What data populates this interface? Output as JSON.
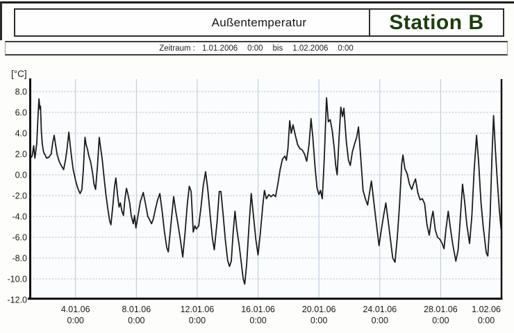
{
  "header": {
    "title": "Außentemperatur",
    "station": "Station B",
    "station_color": "#1e3c10"
  },
  "period": {
    "label": "Zeitraum :",
    "start_date": "1.01.2006",
    "start_time": "0:00",
    "connector": "bis",
    "end_date": "1.02.2006",
    "end_time": "0:00"
  },
  "chart_data": {
    "type": "line",
    "title": "Außentemperatur",
    "subtitle": "Station B",
    "unit_label": "[°C]",
    "xlabel": "",
    "ylabel": "[°C]",
    "ylim": [
      -12.0,
      8.0
    ],
    "grid": true,
    "legend_position": "none",
    "line_color": "#1b1b1b",
    "grid_color": "#b9c5d8",
    "axis_color": "#111111",
    "y_ticks": [
      8,
      6,
      4,
      2,
      0,
      -2,
      -4,
      -6,
      -8,
      -10,
      -12
    ],
    "y_tick_labels": [
      "8.0",
      "6.0",
      "4.0",
      "2.0",
      "0.0",
      "-2.0",
      "-4.0",
      "-6.0",
      "-8.0",
      "-10.0",
      "-12.0"
    ],
    "x_range_days": [
      1,
      32
    ],
    "x_ticks_days": [
      4,
      8,
      12,
      16,
      20,
      24,
      28,
      32
    ],
    "x_tick_labels": [
      {
        "date": "4.01.06",
        "time": "0:00"
      },
      {
        "date": "8.01.06",
        "time": "0:00"
      },
      {
        "date": "12.01.06",
        "time": "0:00"
      },
      {
        "date": "16.01.06",
        "time": "0:00"
      },
      {
        "date": "20.01.06",
        "time": "0:00"
      },
      {
        "date": "24.01.06",
        "time": "0:00"
      },
      {
        "date": "28.01.06",
        "time": "0:00"
      },
      {
        "date": "1.02.06",
        "time": "0:00"
      }
    ],
    "series": [
      {
        "name": "Außentemperatur [°C]",
        "x_unit": "day of period (1 = 1.01.2006 0:00)",
        "points": [
          [
            1.05,
            1.6
          ],
          [
            1.15,
            1.8
          ],
          [
            1.25,
            2.8
          ],
          [
            1.33,
            1.6
          ],
          [
            1.45,
            3.0
          ],
          [
            1.55,
            6.0
          ],
          [
            1.6,
            7.3
          ],
          [
            1.66,
            6.3
          ],
          [
            1.7,
            6.6
          ],
          [
            1.76,
            4.1
          ],
          [
            1.82,
            2.9
          ],
          [
            1.9,
            2.2
          ],
          [
            2.0,
            1.9
          ],
          [
            2.1,
            1.6
          ],
          [
            2.25,
            1.7
          ],
          [
            2.4,
            2.0
          ],
          [
            2.5,
            3.1
          ],
          [
            2.6,
            3.8
          ],
          [
            2.7,
            2.8
          ],
          [
            2.8,
            1.9
          ],
          [
            2.95,
            1.2
          ],
          [
            3.1,
            0.8
          ],
          [
            3.22,
            0.5
          ],
          [
            3.35,
            1.5
          ],
          [
            3.45,
            2.6
          ],
          [
            3.56,
            4.1
          ],
          [
            3.65,
            2.9
          ],
          [
            3.75,
            1.6
          ],
          [
            3.85,
            0.5
          ],
          [
            4.0,
            -0.5
          ],
          [
            4.15,
            -1.3
          ],
          [
            4.3,
            -1.8
          ],
          [
            4.42,
            -1.4
          ],
          [
            4.52,
            0.6
          ],
          [
            4.62,
            3.6
          ],
          [
            4.7,
            2.9
          ],
          [
            4.78,
            2.5
          ],
          [
            4.88,
            1.8
          ],
          [
            5.0,
            1.2
          ],
          [
            5.12,
            0.2
          ],
          [
            5.22,
            -0.9
          ],
          [
            5.32,
            -1.4
          ],
          [
            5.44,
            0.8
          ],
          [
            5.56,
            3.6
          ],
          [
            5.65,
            2.6
          ],
          [
            5.76,
            1.4
          ],
          [
            5.88,
            -0.3
          ],
          [
            6.0,
            -1.9
          ],
          [
            6.12,
            -3.2
          ],
          [
            6.24,
            -4.4
          ],
          [
            6.33,
            -4.8
          ],
          [
            6.45,
            -3.0
          ],
          [
            6.56,
            -1.2
          ],
          [
            6.65,
            -0.3
          ],
          [
            6.76,
            -1.9
          ],
          [
            6.86,
            -3.1
          ],
          [
            6.95,
            -2.7
          ],
          [
            7.05,
            -3.5
          ],
          [
            7.15,
            -3.9
          ],
          [
            7.25,
            -2.3
          ],
          [
            7.35,
            -1.3
          ],
          [
            7.45,
            -1.9
          ],
          [
            7.56,
            -2.7
          ],
          [
            7.66,
            -3.9
          ],
          [
            7.8,
            -4.7
          ],
          [
            7.88,
            -3.9
          ],
          [
            7.97,
            -5.1
          ],
          [
            8.1,
            -4.0
          ],
          [
            8.26,
            -2.6
          ],
          [
            8.45,
            -1.7
          ],
          [
            8.6,
            -2.8
          ],
          [
            8.75,
            -4.0
          ],
          [
            8.9,
            -4.4
          ],
          [
            9.0,
            -4.7
          ],
          [
            9.12,
            -4.2
          ],
          [
            9.25,
            -3.3
          ],
          [
            9.4,
            -2.4
          ],
          [
            9.54,
            -1.8
          ],
          [
            9.7,
            -3.6
          ],
          [
            9.85,
            -5.5
          ],
          [
            10.0,
            -7.0
          ],
          [
            10.1,
            -7.4
          ],
          [
            10.25,
            -5.1
          ],
          [
            10.45,
            -2.1
          ],
          [
            10.6,
            -3.6
          ],
          [
            10.75,
            -4.9
          ],
          [
            10.9,
            -6.3
          ],
          [
            11.05,
            -7.9
          ],
          [
            11.2,
            -5.6
          ],
          [
            11.35,
            -2.8
          ],
          [
            11.48,
            -1.1
          ],
          [
            11.6,
            -1.6
          ],
          [
            11.74,
            -5.5
          ],
          [
            11.85,
            -4.9
          ],
          [
            11.95,
            -5.2
          ],
          [
            12.1,
            -4.9
          ],
          [
            12.25,
            -3.1
          ],
          [
            12.4,
            -1.0
          ],
          [
            12.55,
            0.3
          ],
          [
            12.7,
            -1.5
          ],
          [
            12.85,
            -3.9
          ],
          [
            13.0,
            -6.1
          ],
          [
            13.12,
            -7.2
          ],
          [
            13.3,
            -4.6
          ],
          [
            13.45,
            -1.6
          ],
          [
            13.56,
            -1.6
          ],
          [
            13.7,
            -3.8
          ],
          [
            13.85,
            -6.3
          ],
          [
            14.0,
            -8.2
          ],
          [
            14.12,
            -8.8
          ],
          [
            14.24,
            -8.3
          ],
          [
            14.36,
            -5.6
          ],
          [
            14.48,
            -3.5
          ],
          [
            14.6,
            -5.2
          ],
          [
            14.75,
            -6.7
          ],
          [
            14.9,
            -8.5
          ],
          [
            15.02,
            -10.0
          ],
          [
            15.12,
            -10.5
          ],
          [
            15.25,
            -8.6
          ],
          [
            15.4,
            -5.0
          ],
          [
            15.55,
            -1.8
          ],
          [
            15.7,
            -4.0
          ],
          [
            15.85,
            -6.2
          ],
          [
            16.0,
            -7.7
          ],
          [
            16.15,
            -5.6
          ],
          [
            16.3,
            -3.1
          ],
          [
            16.42,
            -1.5
          ],
          [
            16.55,
            -2.3
          ],
          [
            16.7,
            -1.9
          ],
          [
            16.85,
            -2.1
          ],
          [
            17.0,
            -1.9
          ],
          [
            17.15,
            -2.1
          ],
          [
            17.3,
            -0.9
          ],
          [
            17.45,
            0.5
          ],
          [
            17.6,
            1.5
          ],
          [
            17.76,
            1.8
          ],
          [
            17.86,
            1.4
          ],
          [
            17.96,
            2.5
          ],
          [
            18.08,
            5.2
          ],
          [
            18.18,
            4.0
          ],
          [
            18.3,
            4.8
          ],
          [
            18.45,
            3.8
          ],
          [
            18.6,
            2.9
          ],
          [
            18.76,
            2.5
          ],
          [
            18.9,
            2.4
          ],
          [
            19.05,
            2.0
          ],
          [
            19.2,
            1.3
          ],
          [
            19.35,
            2.9
          ],
          [
            19.48,
            5.4
          ],
          [
            19.6,
            3.6
          ],
          [
            19.74,
            0.8
          ],
          [
            19.88,
            -1.3
          ],
          [
            20.0,
            -1.9
          ],
          [
            20.1,
            -1.5
          ],
          [
            20.22,
            -2.3
          ],
          [
            20.35,
            1.5
          ],
          [
            20.5,
            7.4
          ],
          [
            20.62,
            5.1
          ],
          [
            20.74,
            5.3
          ],
          [
            20.88,
            4.2
          ],
          [
            21.0,
            2.6
          ],
          [
            21.1,
            0.9
          ],
          [
            21.2,
            0.0
          ],
          [
            21.34,
            4.0
          ],
          [
            21.44,
            6.5
          ],
          [
            21.55,
            5.6
          ],
          [
            21.64,
            6.4
          ],
          [
            21.8,
            3.2
          ],
          [
            21.94,
            1.4
          ],
          [
            22.06,
            0.9
          ],
          [
            22.2,
            2.2
          ],
          [
            22.35,
            3.0
          ],
          [
            22.48,
            3.6
          ],
          [
            22.6,
            4.6
          ],
          [
            22.75,
            1.6
          ],
          [
            22.9,
            -1.5
          ],
          [
            23.05,
            -2.3
          ],
          [
            23.2,
            -2.9
          ],
          [
            23.34,
            -1.6
          ],
          [
            23.45,
            -0.6
          ],
          [
            23.6,
            -2.5
          ],
          [
            23.76,
            -4.5
          ],
          [
            23.95,
            -6.8
          ],
          [
            24.1,
            -5.3
          ],
          [
            24.25,
            -3.9
          ],
          [
            24.4,
            -2.7
          ],
          [
            24.55,
            -4.4
          ],
          [
            24.7,
            -6.2
          ],
          [
            24.85,
            -8.0
          ],
          [
            25.0,
            -8.4
          ],
          [
            25.15,
            -6.0
          ],
          [
            25.3,
            -2.9
          ],
          [
            25.44,
            1.0
          ],
          [
            25.52,
            1.9
          ],
          [
            25.65,
            0.6
          ],
          [
            25.8,
            0.1
          ],
          [
            25.95,
            -0.9
          ],
          [
            26.1,
            -1.4
          ],
          [
            26.24,
            -0.8
          ],
          [
            26.35,
            -0.4
          ],
          [
            26.5,
            -1.7
          ],
          [
            26.65,
            -2.4
          ],
          [
            26.8,
            -2.3
          ],
          [
            26.95,
            -2.8
          ],
          [
            27.1,
            -4.8
          ],
          [
            27.25,
            -5.8
          ],
          [
            27.4,
            -4.2
          ],
          [
            27.5,
            -3.5
          ],
          [
            27.65,
            -5.3
          ],
          [
            27.8,
            -6.0
          ],
          [
            27.95,
            -6.2
          ],
          [
            28.1,
            -6.6
          ],
          [
            28.22,
            -7.1
          ],
          [
            28.35,
            -5.2
          ],
          [
            28.5,
            -3.5
          ],
          [
            28.65,
            -5.2
          ],
          [
            28.8,
            -6.7
          ],
          [
            29.0,
            -8.3
          ],
          [
            29.15,
            -7.2
          ],
          [
            29.3,
            -4.0
          ],
          [
            29.44,
            -0.9
          ],
          [
            29.58,
            -2.6
          ],
          [
            29.72,
            -4.8
          ],
          [
            29.9,
            -6.6
          ],
          [
            30.05,
            -4.0
          ],
          [
            30.2,
            0.4
          ],
          [
            30.36,
            3.8
          ],
          [
            30.5,
            1.2
          ],
          [
            30.65,
            -2.6
          ],
          [
            30.8,
            -5.0
          ],
          [
            31.0,
            -7.5
          ],
          [
            31.1,
            -7.8
          ],
          [
            31.25,
            -4.0
          ],
          [
            31.38,
            2.0
          ],
          [
            31.48,
            5.7
          ],
          [
            31.6,
            2.4
          ],
          [
            31.72,
            -0.5
          ],
          [
            31.85,
            -3.2
          ],
          [
            31.97,
            -5.2
          ]
        ]
      }
    ]
  }
}
